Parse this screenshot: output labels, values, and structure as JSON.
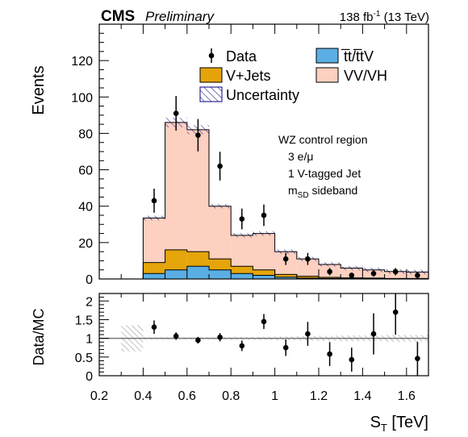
{
  "header": {
    "experiment": "CMS",
    "status": "Preliminary",
    "lumi": "138 fb",
    "lumi_sup": "-1",
    "energy": " (13 TeV)"
  },
  "annotation": {
    "line1": "WZ control region",
    "line2": "3 e/μ",
    "line3": "1 V-tagged Jet",
    "line4_main": "m",
    "line4_sub": "SD",
    "line4_rest": " sideband"
  },
  "legend": {
    "data": "Data",
    "ttbar": "t̅t/t̅tV",
    "vjets": "V+Jets",
    "vv": "VV/VH",
    "unc": "Uncertainty"
  },
  "colors": {
    "vv": "#fdd0c0",
    "vjets": "#e5a50a",
    "ttbar": "#5aaee3",
    "unc_hatch": "#000080",
    "ratio_band": "#bbbbbb"
  },
  "chart_data": [
    {
      "type": "bar",
      "subtype": "stacked-histogram-with-data-points",
      "xlabel": "S",
      "xlabel_sub": "T",
      "xlabel_unit": " [TeV]",
      "ylabel": "Events",
      "xlim": [
        0.2,
        1.7
      ],
      "ylim": [
        0,
        140
      ],
      "xticks": [
        "0.2",
        "0.4",
        "0.6",
        "0.8",
        "1",
        "1.2",
        "1.4",
        "1.6"
      ],
      "yticks": [
        "0",
        "20",
        "40",
        "60",
        "80",
        "100",
        "120"
      ],
      "bin_edges": [
        0.3,
        0.4,
        0.5,
        0.6,
        0.7,
        0.8,
        0.9,
        1.0,
        1.1,
        1.2,
        1.3,
        1.4,
        1.5,
        1.6,
        1.7
      ],
      "series": [
        {
          "name": "t̅t/t̅tV",
          "values": [
            0,
            3,
            5,
            7,
            5,
            3,
            2,
            1,
            0.5,
            0.3,
            0.2,
            0.2,
            0.1,
            0.1
          ]
        },
        {
          "name": "V+Jets",
          "values": [
            0,
            6,
            11,
            8,
            6,
            4,
            3,
            1.5,
            1,
            0.6,
            0.4,
            0.3,
            0.2,
            0.2
          ]
        },
        {
          "name": "VV/VH",
          "values": [
            0,
            24.5,
            70,
            67,
            29,
            17,
            20,
            12.5,
            9.5,
            7.1,
            5.4,
            4.5,
            3.8,
            3.5
          ]
        }
      ],
      "total_mc": [
        0,
        33.5,
        86,
        82,
        40,
        24,
        25,
        15,
        11,
        8,
        6,
        5,
        4.1,
        3.8
      ],
      "data_points": {
        "name": "Data",
        "x": [
          0.45,
          0.55,
          0.65,
          0.75,
          0.85,
          0.95,
          1.05,
          1.15,
          1.25,
          1.35,
          1.45,
          1.55,
          1.65
        ],
        "y": [
          43,
          91,
          79,
          62,
          33,
          35,
          11,
          11,
          4,
          2,
          3,
          4,
          2
        ],
        "yerr": [
          6.6,
          9.5,
          8.9,
          7.9,
          5.7,
          5.9,
          3.3,
          3.3,
          2,
          1.4,
          1.7,
          2,
          1.4
        ]
      }
    },
    {
      "type": "scatter",
      "subtype": "ratio",
      "xlabel": "S",
      "ylabel": "Data/MC",
      "xlim": [
        0.2,
        1.7
      ],
      "ylim": [
        0,
        2.2
      ],
      "yticks": [
        "0",
        "0.5",
        "1",
        "1.5",
        "2"
      ],
      "reference_line": 1,
      "x": [
        0.45,
        0.55,
        0.65,
        0.75,
        0.85,
        0.95,
        1.05,
        1.15,
        1.25,
        1.35,
        1.45,
        1.55,
        1.65
      ],
      "y": [
        1.3,
        1.06,
        0.95,
        1.03,
        0.8,
        1.45,
        0.75,
        1.12,
        0.58,
        0.43,
        1.12,
        1.7,
        0.46
      ],
      "yerr": [
        0.18,
        0.1,
        0.09,
        0.11,
        0.14,
        0.2,
        0.22,
        0.32,
        0.32,
        0.32,
        0.55,
        0.6,
        0.45
      ],
      "band_halfwidth": [
        0.35,
        0.03,
        0.03,
        0.03,
        0.03,
        0.04,
        0.04,
        0.05,
        0.06,
        0.07,
        0.08,
        0.08,
        0.09,
        0.09
      ]
    }
  ]
}
